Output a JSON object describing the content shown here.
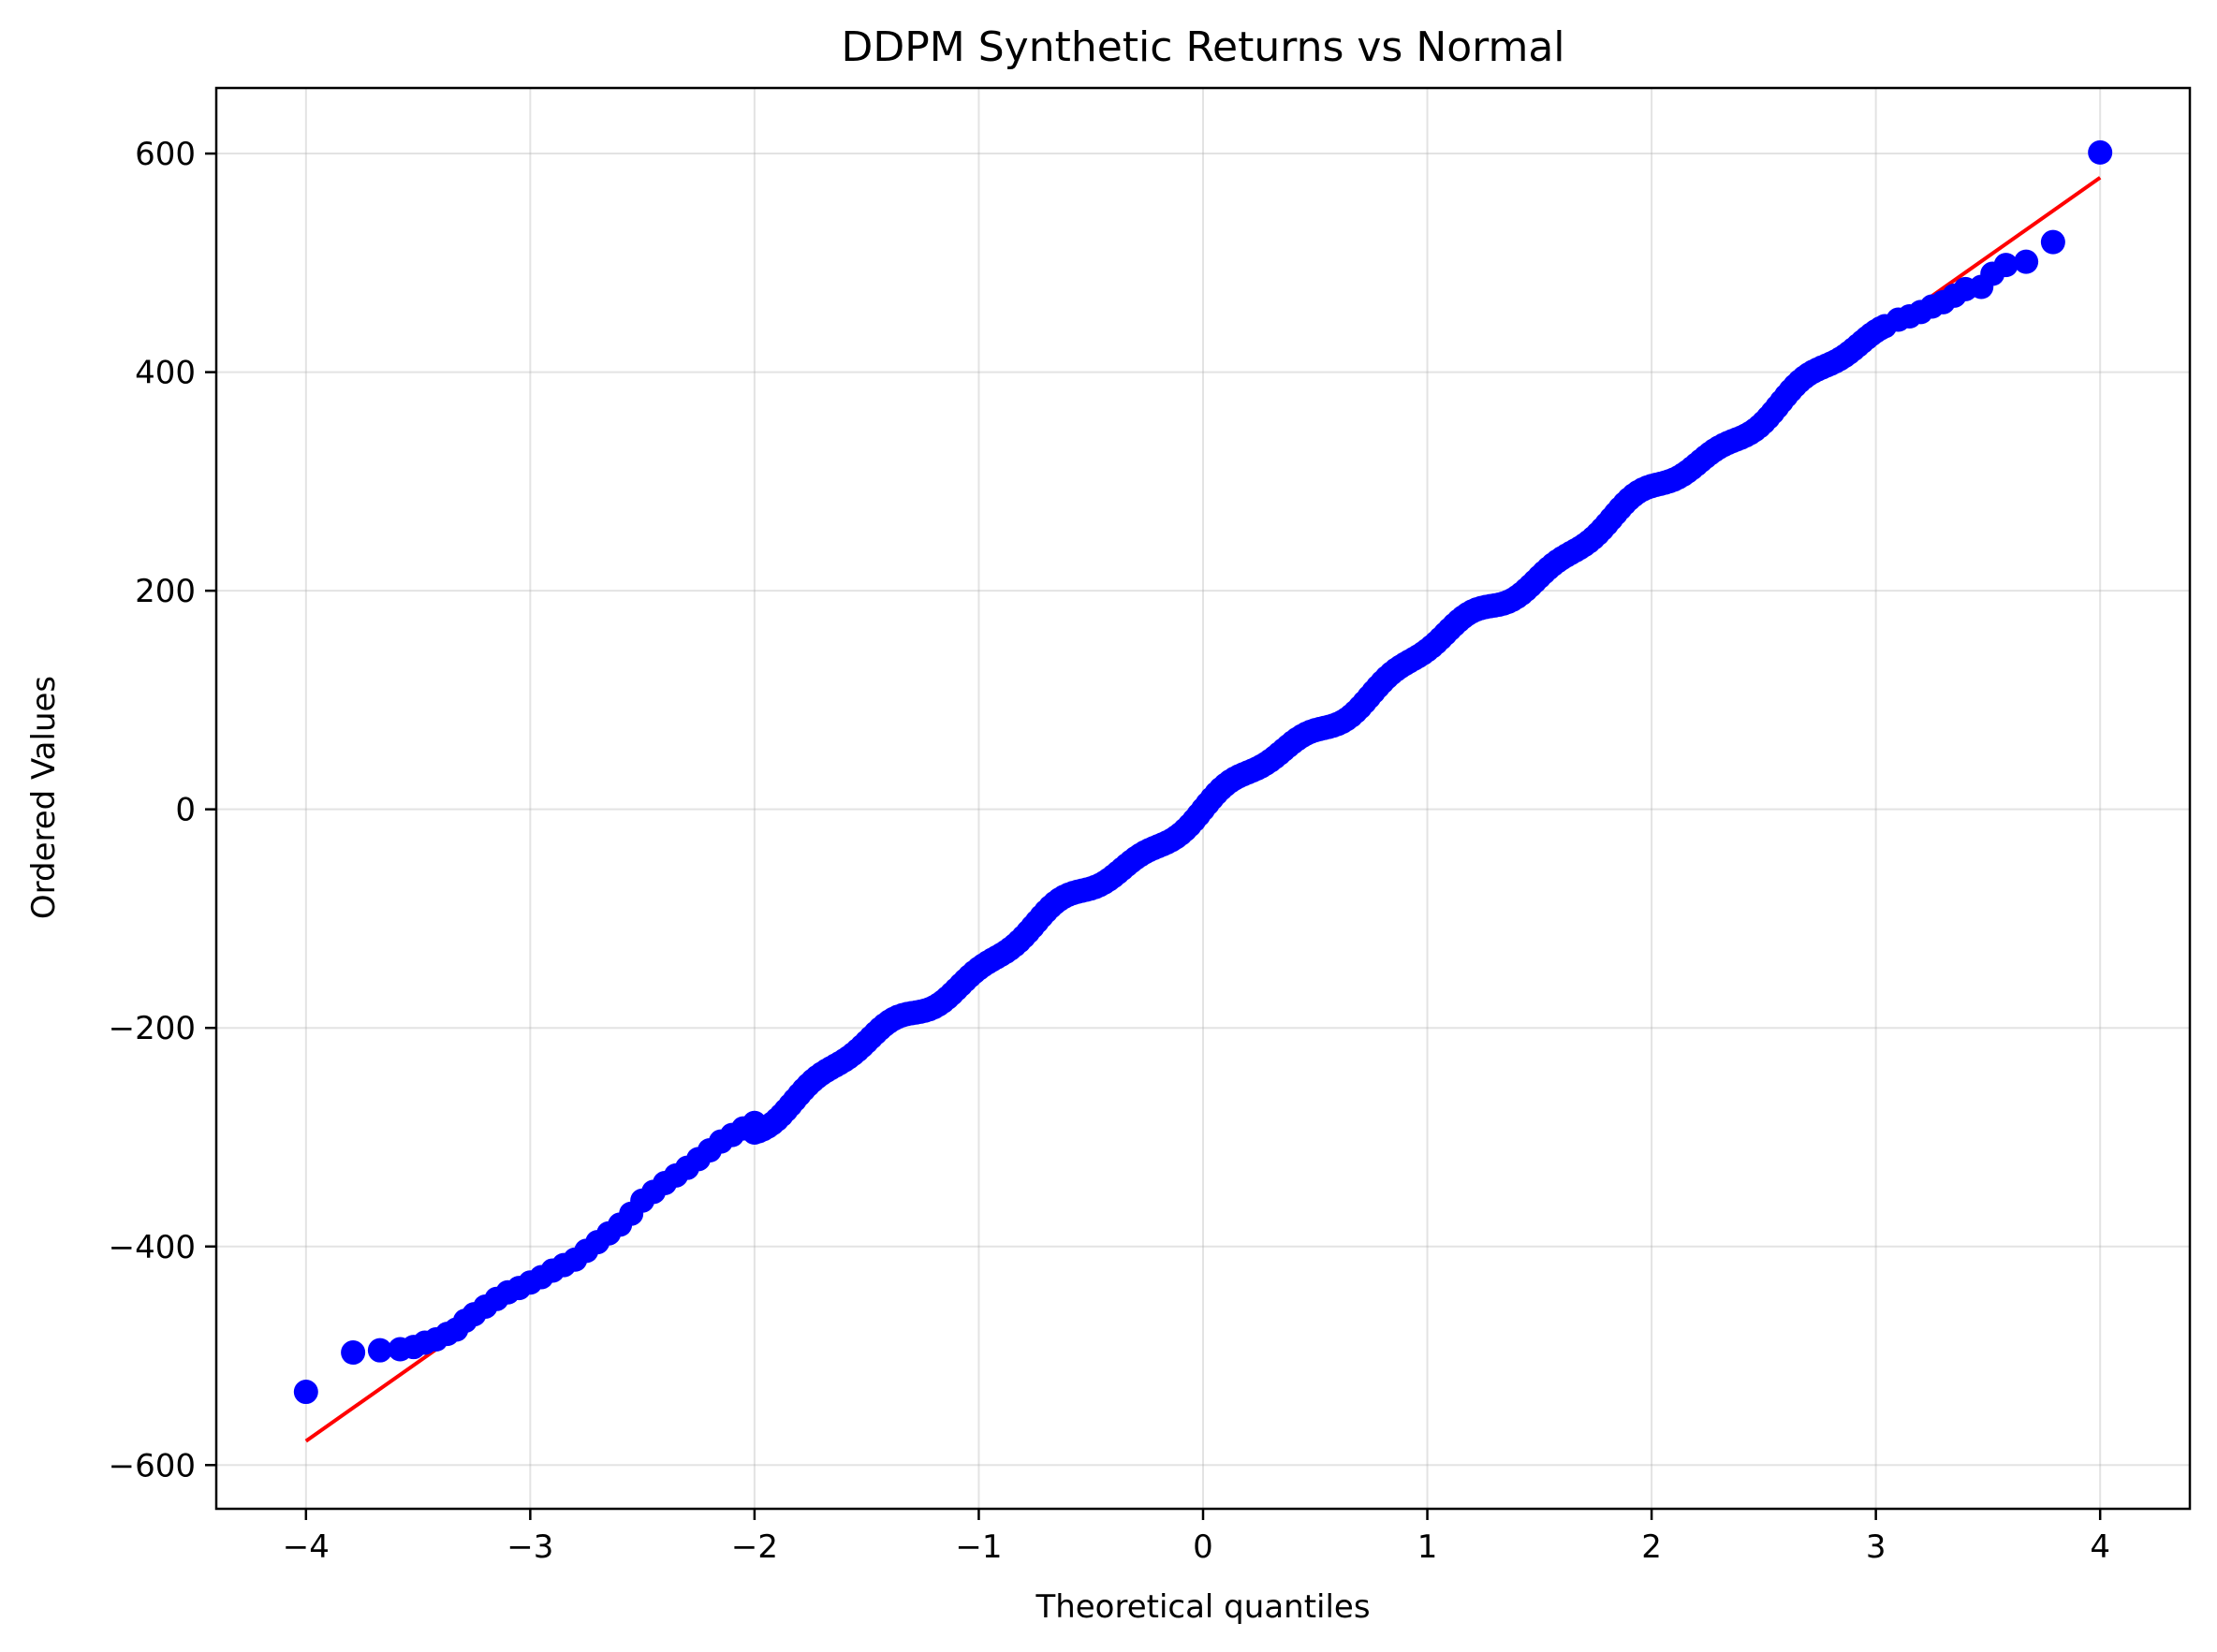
{
  "chart_data": {
    "type": "scatter",
    "title": "DDPM Synthetic Returns vs Normal",
    "xlabel": "Theoretical quantiles",
    "ylabel": "Ordered Values",
    "xlim": [
      -4.4,
      4.4
    ],
    "ylim": [
      -640,
      660
    ],
    "xticks": [
      -4,
      -3,
      -2,
      -1,
      0,
      1,
      2,
      3,
      4
    ],
    "xtick_labels": [
      "−4",
      "−3",
      "−2",
      "−1",
      "0",
      "1",
      "2",
      "3",
      "4"
    ],
    "yticks": [
      -600,
      -400,
      -200,
      0,
      200,
      400,
      600
    ],
    "ytick_labels": [
      "−600",
      "−400",
      "−200",
      "0",
      "200",
      "400",
      "600"
    ],
    "grid": true,
    "point_color": "#0000ff",
    "line_color": "#ff0000",
    "fit_line": {
      "x": [
        -4.0,
        4.0
      ],
      "y": [
        -578,
        578
      ]
    },
    "sample_points": [
      [
        -4.0,
        -533
      ],
      [
        -3.79,
        -497
      ],
      [
        -3.67,
        -495
      ],
      [
        -3.58,
        -494
      ],
      [
        -3.52,
        -492
      ],
      [
        -3.47,
        -488
      ],
      [
        -3.42,
        -485
      ],
      [
        -3.37,
        -480
      ],
      [
        -3.33,
        -476
      ],
      [
        -3.29,
        -468
      ],
      [
        -3.25,
        -462
      ],
      [
        -3.2,
        -455
      ],
      [
        -3.15,
        -448
      ],
      [
        -3.1,
        -442
      ],
      [
        -3.05,
        -438
      ],
      [
        -3.0,
        -433
      ],
      [
        -2.95,
        -428
      ],
      [
        -2.9,
        -422
      ],
      [
        -2.85,
        -417
      ],
      [
        -2.8,
        -412
      ],
      [
        -2.75,
        -404
      ],
      [
        -2.7,
        -396
      ],
      [
        -2.65,
        -388
      ],
      [
        -2.6,
        -380
      ],
      [
        -2.55,
        -370
      ],
      [
        -2.5,
        -358
      ],
      [
        -2.45,
        -350
      ],
      [
        -2.4,
        -342
      ],
      [
        -2.35,
        -335
      ],
      [
        -2.3,
        -328
      ],
      [
        -2.25,
        -320
      ],
      [
        -2.2,
        -312
      ],
      [
        -2.15,
        -304
      ],
      [
        -2.1,
        -298
      ],
      [
        -2.05,
        -292
      ],
      [
        -2.0,
        -287
      ],
      [
        3.1,
        448
      ],
      [
        3.15,
        451
      ],
      [
        3.2,
        455
      ],
      [
        3.25,
        460
      ],
      [
        3.3,
        464
      ],
      [
        3.35,
        470
      ],
      [
        3.4,
        476
      ],
      [
        3.47,
        478
      ],
      [
        3.52,
        490
      ],
      [
        3.58,
        498
      ],
      [
        3.67,
        501
      ],
      [
        3.79,
        519
      ],
      [
        4.0,
        601
      ]
    ],
    "dense_range": {
      "x": [
        -2.0,
        3.05
      ],
      "slope": 144.5
    }
  }
}
